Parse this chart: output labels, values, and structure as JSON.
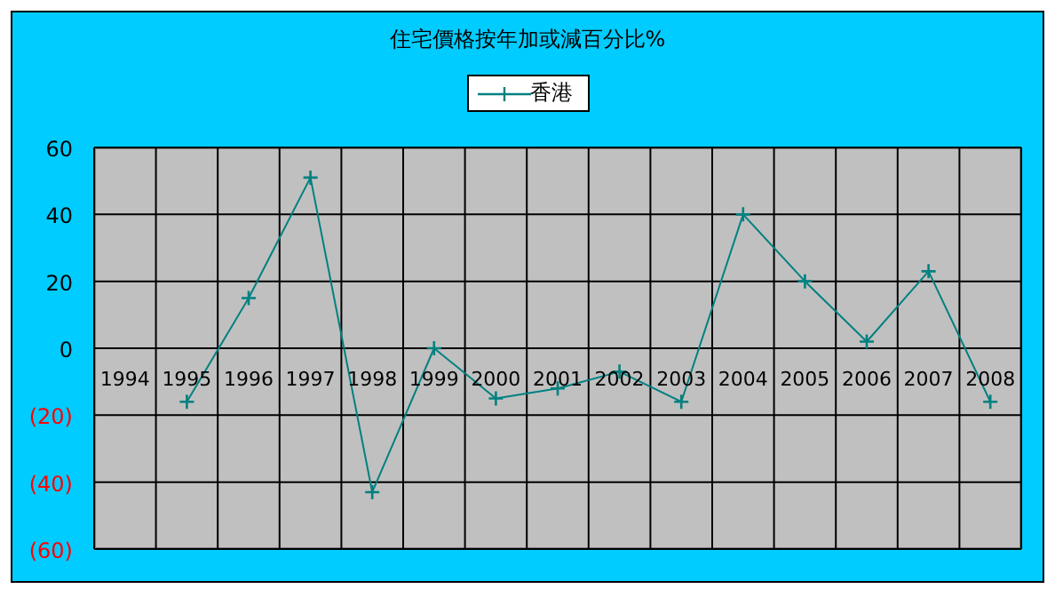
{
  "chart_data": {
    "type": "line",
    "title": "住宅價格按年加或減百分比%",
    "categories": [
      "1994",
      "1995",
      "1996",
      "1997",
      "1998",
      "1999",
      "2000",
      "2001",
      "2002",
      "2003",
      "2004",
      "2005",
      "2006",
      "2007",
      "2008"
    ],
    "series": [
      {
        "name": "香港",
        "color": "#008080",
        "values": [
          null,
          -16,
          15,
          51,
          -43,
          0,
          -15,
          -12,
          -7,
          -16,
          40,
          20,
          2,
          23,
          -16
        ]
      }
    ],
    "ylim": [
      -60,
      60
    ],
    "yticks": [
      {
        "value": -60,
        "label": "(60)"
      },
      {
        "value": -40,
        "label": "(40)"
      },
      {
        "value": -20,
        "label": "(20)"
      },
      0,
      20,
      40,
      60
    ],
    "grid": true,
    "legend": "top",
    "marker": "cross",
    "line_style": "solid"
  }
}
